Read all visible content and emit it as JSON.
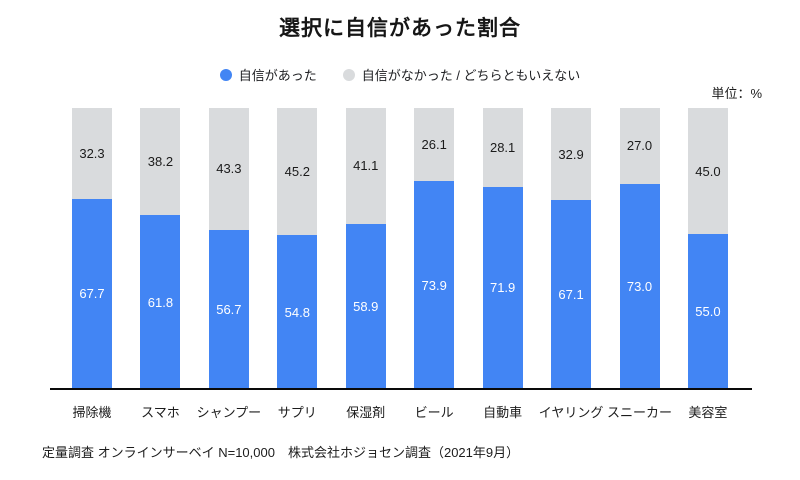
{
  "title": "選択に自信があった割合",
  "unit_label": "単位：%",
  "legend": [
    {
      "label": "自信があった",
      "color": "#4285F4"
    },
    {
      "label": "自信がなかった / どちらともいえない",
      "color": "#D9DBDD"
    }
  ],
  "chart_data": {
    "type": "bar",
    "stacked": true,
    "orientation": "vertical",
    "title": "選択に自信があった割合",
    "unit": "%",
    "ylim": [
      0,
      100
    ],
    "grid": false,
    "legend_position": "top",
    "categories": [
      "掃除機",
      "スマホ",
      "シャンプー",
      "サプリ",
      "保湿剤",
      "ビール",
      "自動車",
      "イヤリング",
      "スニーカー",
      "美容室"
    ],
    "series": [
      {
        "name": "自信があった",
        "color": "#4285F4",
        "values": [
          67.7,
          61.8,
          56.7,
          54.8,
          58.9,
          73.9,
          71.9,
          67.1,
          73.0,
          55.0
        ]
      },
      {
        "name": "自信がなかった / どちらともいえない",
        "color": "#D9DBDD",
        "values": [
          32.3,
          38.2,
          43.3,
          45.2,
          41.1,
          26.1,
          28.1,
          32.9,
          27.0,
          45.0
        ]
      }
    ]
  },
  "footer": "定量調査 オンラインサーベイ N=10,000　株式会社ホジョセン調査（2021年9月）"
}
